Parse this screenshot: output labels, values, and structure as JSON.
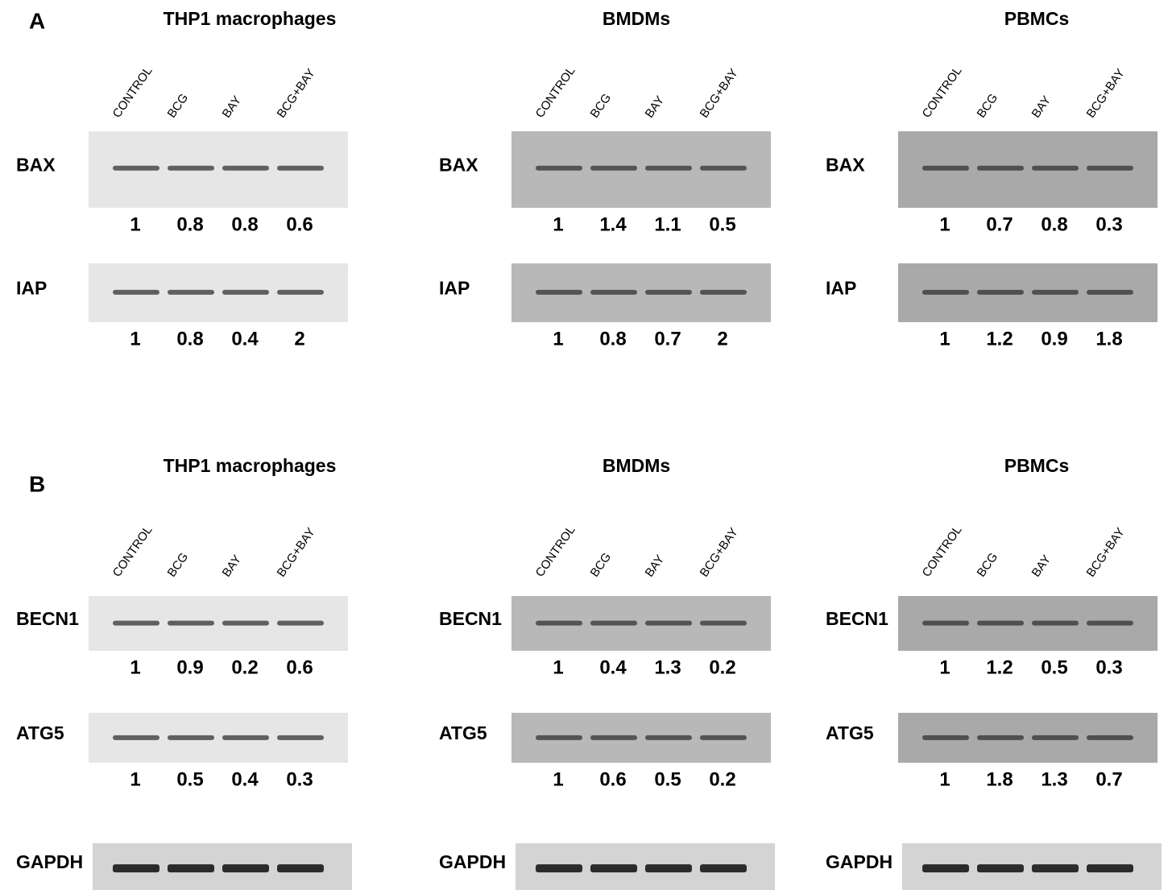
{
  "panels": [
    {
      "label": "A",
      "blots": [
        {
          "title": "THP1 macrophages",
          "lanes": [
            "CONTROL",
            "BCG",
            "BAY",
            "BCG+BAY"
          ],
          "rows": [
            {
              "protein": "BAX",
              "values": [
                1,
                0.8,
                0.8,
                0.6
              ]
            },
            {
              "protein": "IAP",
              "values": [
                1,
                0.8,
                0.4,
                2
              ]
            }
          ]
        },
        {
          "title": "BMDMs",
          "lanes": [
            "CONTROL",
            "BCG",
            "BAY",
            "BCG+BAY"
          ],
          "rows": [
            {
              "protein": "BAX",
              "values": [
                1,
                1.4,
                1.1,
                0.5
              ]
            },
            {
              "protein": "IAP",
              "values": [
                1,
                0.8,
                0.7,
                2
              ]
            }
          ]
        },
        {
          "title": "PBMCs",
          "lanes": [
            "CONTROL",
            "BCG",
            "BAY",
            "BCG+BAY"
          ],
          "rows": [
            {
              "protein": "BAX",
              "values": [
                1,
                0.7,
                0.8,
                0.3
              ]
            },
            {
              "protein": "IAP",
              "values": [
                1,
                1.2,
                0.9,
                1.8
              ]
            }
          ]
        }
      ]
    },
    {
      "label": "B",
      "blots": [
        {
          "title": "THP1 macrophages",
          "lanes": [
            "CONTROL",
            "BCG",
            "BAY",
            "BCG+BAY"
          ],
          "rows": [
            {
              "protein": "BECN1",
              "values": [
                1,
                0.9,
                0.2,
                0.6
              ]
            },
            {
              "protein": "ATG5",
              "values": [
                1,
                0.5,
                0.4,
                0.3
              ]
            },
            {
              "protein": "GAPDH"
            }
          ]
        },
        {
          "title": "BMDMs",
          "lanes": [
            "CONTROL",
            "BCG",
            "BAY",
            "BCG+BAY"
          ],
          "rows": [
            {
              "protein": "BECN1",
              "values": [
                1,
                0.4,
                1.3,
                0.2
              ]
            },
            {
              "protein": "ATG5",
              "values": [
                1,
                0.6,
                0.5,
                0.2
              ]
            },
            {
              "protein": "GAPDH"
            }
          ]
        },
        {
          "title": "PBMCs",
          "lanes": [
            "CONTROL",
            "BCG",
            "BAY",
            "BCG+BAY"
          ],
          "rows": [
            {
              "protein": "BECN1",
              "values": [
                1,
                1.2,
                0.5,
                0.3
              ]
            },
            {
              "protein": "ATG5",
              "values": [
                1,
                1.8,
                1.3,
                0.7
              ]
            },
            {
              "protein": "GAPDH"
            }
          ]
        }
      ]
    }
  ]
}
